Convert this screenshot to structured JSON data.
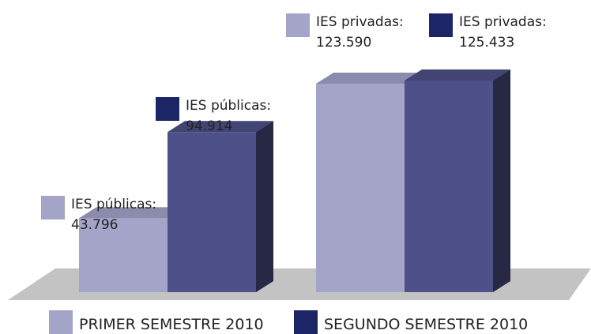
{
  "chart_data": {
    "type": "bar3d",
    "categories": [
      "IES públicas:",
      "IES privadas:"
    ],
    "series": [
      {
        "name": "PRIMER SEMESTRE 2010",
        "color": "#a4a4c9",
        "values": [
          43796,
          123590
        ],
        "value_labels": [
          "43.796",
          "123.590"
        ]
      },
      {
        "name": "SEGUNDO SEMESTRE 2010",
        "color": "#4e5189",
        "values": [
          94914,
          125433
        ],
        "value_labels": [
          "94.914",
          "125.433"
        ]
      }
    ]
  }
}
